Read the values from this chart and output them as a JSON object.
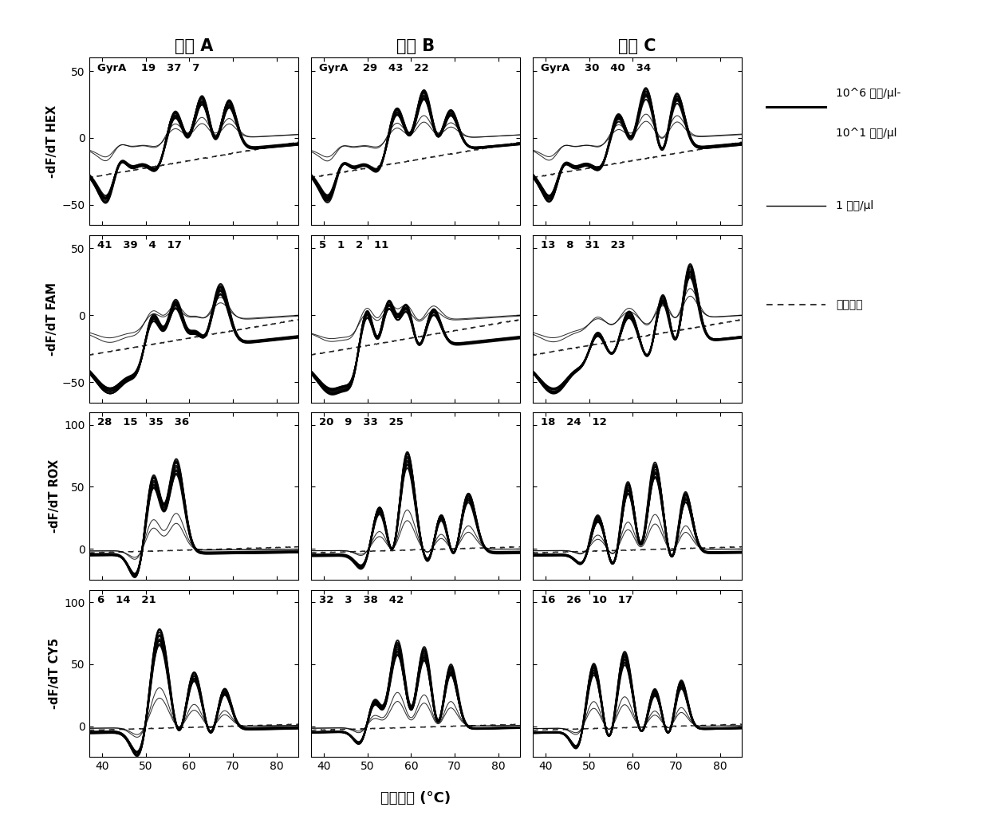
{
  "title_cols": [
    "反应 A",
    "反应 B",
    "反应 C"
  ],
  "row_labels": [
    "-dF/dT HEX",
    "-dF/dT FAM",
    "-dF/dT ROX",
    "-dF/dT CY5"
  ],
  "xlabel": "熔点温度 (°C)",
  "legend_line1": "10^6 拷贝/μl-",
  "legend_line2": "10^1 拷贝/μl",
  "legend_thin": "1 拷贝/μl",
  "legend_dash": "阴性对照",
  "xlim": [
    37,
    85
  ],
  "x_ticks": [
    40,
    50,
    60,
    70,
    80
  ],
  "annotations": [
    [
      "GyrA    19   37   7",
      "GyrA    29   43   22",
      "GyrA    30   40   34"
    ],
    [
      "41   39   4   17",
      "5   1   2   11",
      "13   8   31   23"
    ],
    [
      "28   15   35   36",
      "20   9   33   25",
      "18   24   12"
    ],
    [
      "6   14   21",
      "32   3   38   42",
      "16   26   10   17"
    ]
  ],
  "ylims": [
    [
      [
        -65,
        60
      ],
      [
        -65,
        60
      ],
      [
        -65,
        60
      ]
    ],
    [
      [
        -65,
        60
      ],
      [
        -65,
        60
      ],
      [
        -65,
        60
      ]
    ],
    [
      [
        -25,
        110
      ],
      [
        -25,
        110
      ],
      [
        -25,
        110
      ]
    ],
    [
      [
        -25,
        110
      ],
      [
        -25,
        110
      ],
      [
        -25,
        110
      ]
    ]
  ],
  "yticks_row0": [
    -50,
    0,
    50
  ],
  "yticks_row1": [
    -50,
    0,
    50
  ],
  "yticks_row2": [
    0,
    50,
    100
  ],
  "yticks_row3": [
    0,
    50,
    100
  ]
}
